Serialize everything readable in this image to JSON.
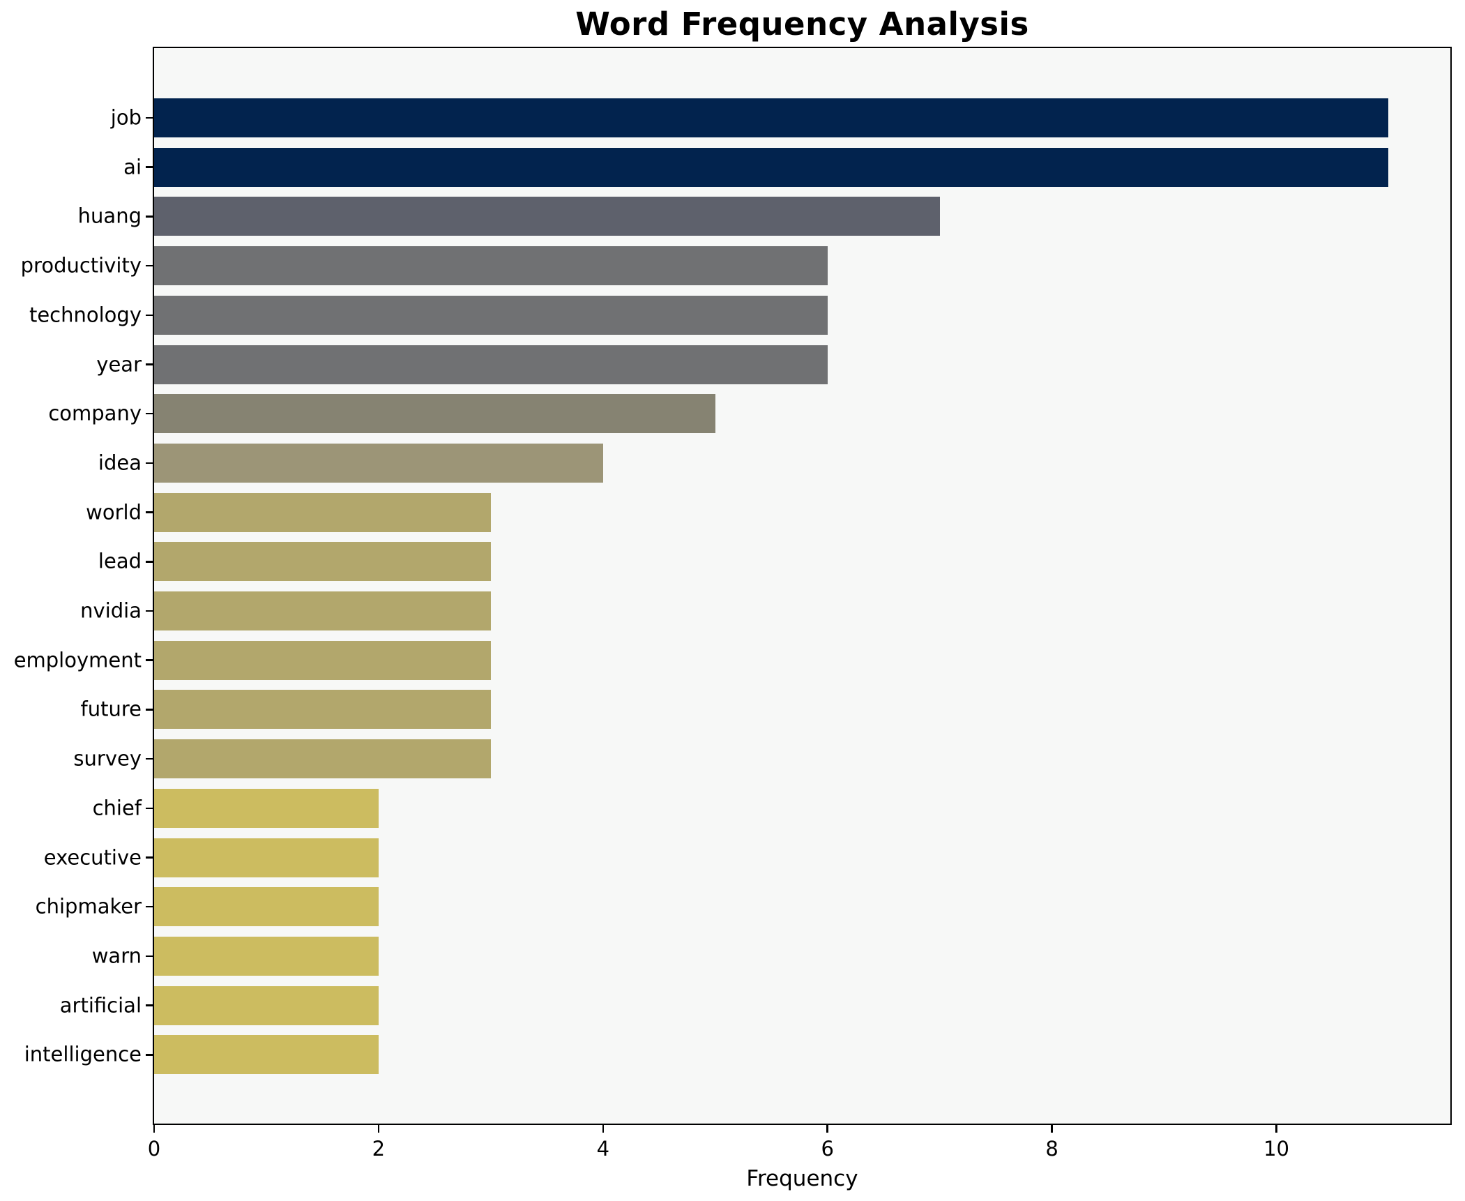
{
  "chart_data": {
    "type": "bar",
    "orientation": "horizontal",
    "title": "Word Frequency Analysis",
    "xlabel": "Frequency",
    "ylabel": "",
    "categories": [
      "job",
      "ai",
      "huang",
      "productivity",
      "technology",
      "year",
      "company",
      "idea",
      "world",
      "lead",
      "nvidia",
      "employment",
      "future",
      "survey",
      "chief",
      "executive",
      "chipmaker",
      "warn",
      "artificial",
      "intelligence"
    ],
    "values": [
      11,
      11,
      7,
      6,
      6,
      6,
      5,
      4,
      3,
      3,
      3,
      3,
      3,
      3,
      2,
      2,
      2,
      2,
      2,
      2
    ],
    "bar_colors": [
      "#02234e",
      "#02234e",
      "#5e616c",
      "#707173",
      "#707173",
      "#707173",
      "#868372",
      "#9c9577",
      "#b2a76c",
      "#b2a76c",
      "#b2a76c",
      "#b2a76c",
      "#b2a76c",
      "#b2a76c",
      "#ccbc60",
      "#ccbc60",
      "#ccbc60",
      "#ccbc60",
      "#ccbc60",
      "#ccbc60"
    ],
    "xlim": [
      0,
      11.55
    ],
    "xticks": [
      0,
      2,
      4,
      6,
      8,
      10
    ],
    "grid": false,
    "legend": false,
    "plot_background": "#f7f8f7",
    "figure_background": "#ffffff",
    "axis_color": "#000000"
  }
}
